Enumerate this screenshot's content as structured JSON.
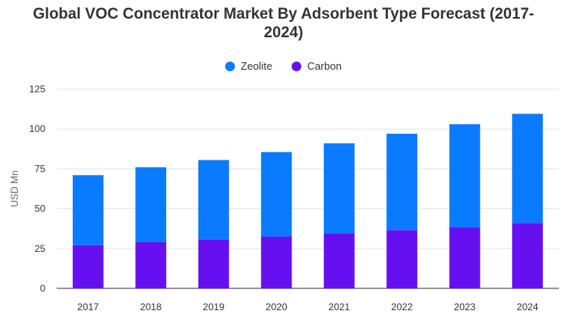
{
  "chart_data": {
    "type": "bar",
    "stacked": true,
    "title_line1": "Global VOC Concentrator Market By Adsorbent Type Forecast (2017-",
    "title_line2": "2024)",
    "ylabel": "USD Mn",
    "xlabel": "",
    "ylim": [
      0,
      125
    ],
    "yticks": [
      0,
      25,
      50,
      75,
      100,
      125
    ],
    "grid": true,
    "legend_position": "top-center",
    "categories": [
      "2017",
      "2018",
      "2019",
      "2020",
      "2021",
      "2022",
      "2023",
      "2024"
    ],
    "series": [
      {
        "name": "Carbon",
        "color": "#6610f2",
        "values": [
          27,
          29,
          30.5,
          32.5,
          34.5,
          36.5,
          38.5,
          41
        ]
      },
      {
        "name": "Zeolite",
        "color": "#0a7bff",
        "values": [
          44,
          47,
          50,
          53,
          56.5,
          60.5,
          64.5,
          68.5
        ]
      }
    ]
  },
  "legend": [
    {
      "name": "Zeolite",
      "color": "#0a7bff"
    },
    {
      "name": "Carbon",
      "color": "#6610f2"
    }
  ]
}
